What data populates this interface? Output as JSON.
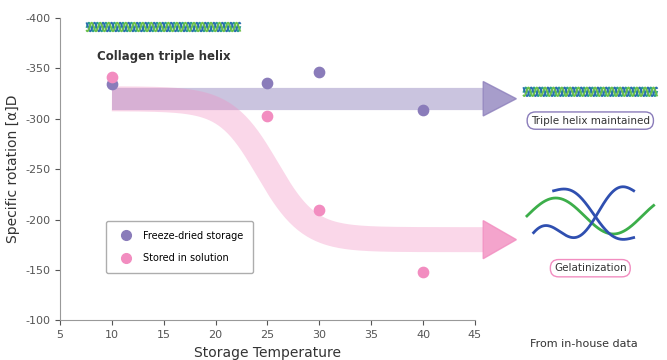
{
  "chart_data": {
    "type": "scatter",
    "x_label": "Storage Temperature",
    "y_label": "Specific rotation [α]D",
    "xlim": [
      5,
      45
    ],
    "xticks": [
      5,
      10,
      15,
      20,
      25,
      30,
      35,
      40,
      45
    ],
    "ylim": [
      -100,
      -400
    ],
    "yticks": [
      -400,
      -350,
      -300,
      -250,
      -200,
      -150,
      -100
    ],
    "grid": false,
    "legend": "lower left",
    "marker": "o",
    "series": [
      {
        "name": "Freeze-dried storage",
        "color": "#8a7cba",
        "x": [
          10,
          25,
          30,
          40
        ],
        "values": [
          -335,
          -336,
          -346,
          -309
        ]
      },
      {
        "name": "Stored in solution",
        "color": "#f28dc0",
        "x": [
          10,
          25,
          30,
          40
        ],
        "values": [
          -341,
          -303,
          -210,
          -148
        ]
      }
    ],
    "annotations": [
      "Collagen triple helix",
      "Triple helix maintained",
      "Gelatinization"
    ],
    "source": "From in-house data"
  }
}
